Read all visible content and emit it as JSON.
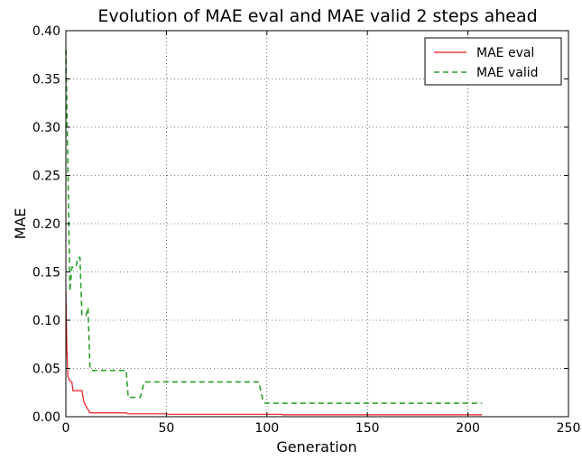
{
  "chart_data": {
    "type": "line",
    "title": "Evolution of MAE eval and MAE valid 2 steps ahead",
    "xlabel": "Generation",
    "ylabel": "MAE",
    "xlim": [
      0,
      250
    ],
    "ylim": [
      0,
      0.4
    ],
    "xticks": [
      "0",
      "50",
      "100",
      "150",
      "200",
      "250"
    ],
    "yticks": [
      "0.00",
      "0.05",
      "0.10",
      "0.15",
      "0.20",
      "0.25",
      "0.30",
      "0.35",
      "0.40"
    ],
    "grid": true,
    "legend_position": "top-right",
    "series": [
      {
        "name": "MAE eval",
        "color": "#e8191f",
        "style": "solid",
        "points": [
          [
            0,
            0.13
          ],
          [
            0.5,
            0.07
          ],
          [
            1,
            0.042
          ],
          [
            2,
            0.037
          ],
          [
            3,
            0.036
          ],
          [
            3.5,
            0.027
          ],
          [
            8,
            0.027
          ],
          [
            9,
            0.015
          ],
          [
            10,
            0.011
          ],
          [
            12,
            0.004
          ],
          [
            30,
            0.004
          ],
          [
            31,
            0.003
          ],
          [
            50,
            0.003
          ],
          [
            51,
            0.0025
          ],
          [
            107,
            0.0025
          ],
          [
            108,
            0.002
          ],
          [
            207,
            0.002
          ]
        ]
      },
      {
        "name": "MAE valid",
        "color": "#2ca02c",
        "style": "dashed",
        "points": [
          [
            0,
            0.38
          ],
          [
            1,
            0.26
          ],
          [
            2,
            0.13
          ],
          [
            3,
            0.155
          ],
          [
            5,
            0.155
          ],
          [
            6,
            0.165
          ],
          [
            7,
            0.165
          ],
          [
            8,
            0.105
          ],
          [
            10,
            0.105
          ],
          [
            11,
            0.113
          ],
          [
            12,
            0.05
          ],
          [
            13,
            0.048
          ],
          [
            30,
            0.048
          ],
          [
            31,
            0.02
          ],
          [
            37,
            0.02
          ],
          [
            38,
            0.028
          ],
          [
            39,
            0.036
          ],
          [
            96,
            0.036
          ],
          [
            98,
            0.017
          ],
          [
            99,
            0.014
          ],
          [
            207,
            0.014
          ]
        ]
      }
    ]
  }
}
